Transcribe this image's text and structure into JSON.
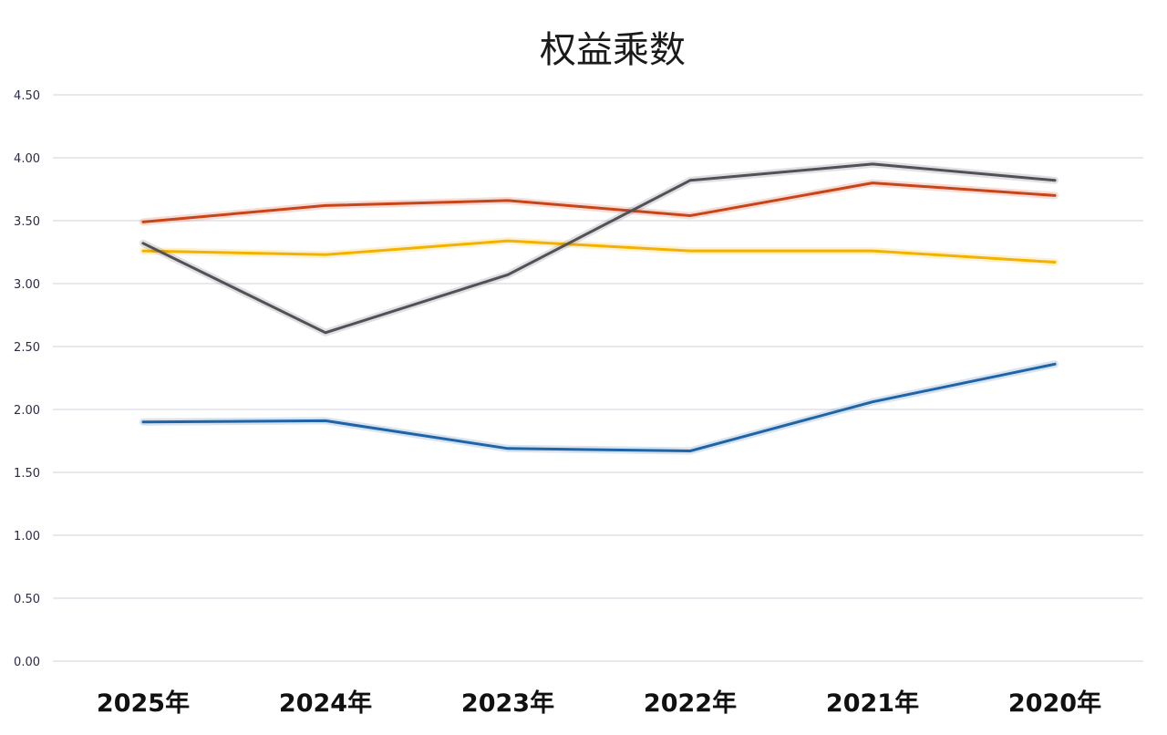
{
  "chart_data": {
    "type": "line",
    "title": "权益乘数",
    "xlabel": "",
    "ylabel": "",
    "categories": [
      "2025年",
      "2024年",
      "2023年",
      "2022年",
      "2021年",
      "2020年"
    ],
    "y_ticks": [
      "0.00",
      "0.50",
      "1.00",
      "1.50",
      "2.00",
      "2.50",
      "3.00",
      "3.50",
      "4.00",
      "4.50"
    ],
    "ylim": [
      0,
      4.5
    ],
    "grid": true,
    "legend": "none",
    "series": [
      {
        "color": "#c8451a",
        "values": [
          3.49,
          3.62,
          3.66,
          3.54,
          3.8,
          3.7
        ]
      },
      {
        "color": "#f2b300",
        "values": [
          3.26,
          3.23,
          3.34,
          3.26,
          3.26,
          3.17
        ]
      },
      {
        "color": "#545058",
        "values": [
          3.32,
          2.61,
          3.07,
          3.82,
          3.95,
          3.82
        ]
      },
      {
        "color": "#1f64a6",
        "values": [
          1.9,
          1.91,
          1.69,
          1.67,
          2.06,
          2.36
        ]
      }
    ]
  }
}
